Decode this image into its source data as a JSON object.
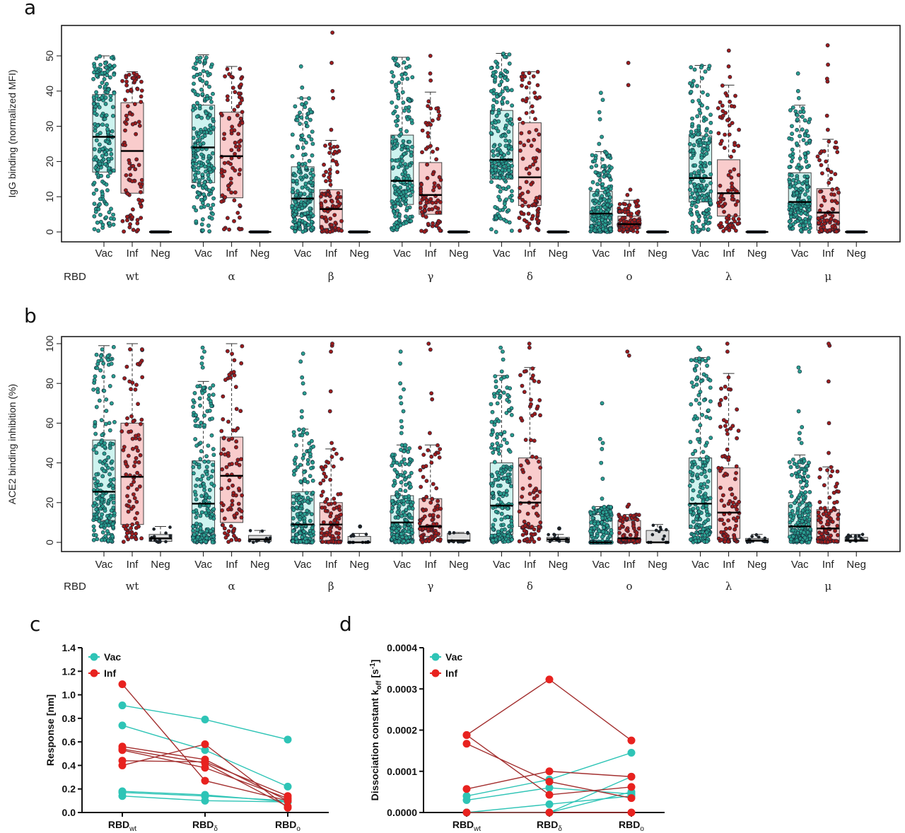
{
  "colors": {
    "vac_dot": "#2a9d8f",
    "vac_box": "#cdf3ef",
    "inf_dot": "#9b1c1c",
    "inf_box": "#f9cccc",
    "neg_dot": "#222222",
    "neg_box": "#dddddd",
    "line_vac": "#2ec4b6",
    "line_inf": "#e8221f",
    "line_inf_stroke": "#a33030"
  },
  "chart_data": [
    {
      "panel": "a",
      "type": "box",
      "ylabel": "IgG binding (normalized MFI)",
      "ylim": [
        0,
        58
      ],
      "yticks": [
        0,
        10,
        20,
        30,
        40,
        50
      ],
      "groups_label": [
        "Vac",
        "Inf",
        "Neg"
      ],
      "row_label": "RBD",
      "variants": [
        {
          "name": "wt",
          "Vac": {
            "box": [
              0,
              17,
              27,
              39,
              50
            ],
            "outliers": []
          },
          "Inf": {
            "box": [
              0,
              11,
              23,
              36.7,
              45.5
            ],
            "outliers": []
          },
          "Neg": {
            "box": [
              0,
              0,
              0,
              0,
              0
            ],
            "outliers": []
          }
        },
        {
          "name": "α",
          "Vac": {
            "box": [
              0,
              14,
              24,
              36,
              50.3
            ],
            "outliers": []
          },
          "Inf": {
            "box": [
              0,
              9.7,
              21.5,
              34,
              47
            ],
            "outliers": []
          },
          "Neg": {
            "box": [
              0,
              0,
              0,
              0,
              0
            ],
            "outliers": []
          }
        },
        {
          "name": "β",
          "Vac": {
            "box": [
              0,
              4.5,
              9.5,
              18.5,
              38
            ],
            "outliers": [
              41,
              47
            ]
          },
          "Inf": {
            "box": [
              0,
              1,
              6.5,
              12,
              26
            ],
            "outliers": [
              29,
              38,
              40,
              48,
              56.6
            ]
          },
          "Neg": {
            "box": [
              0,
              0,
              0,
              0,
              0
            ],
            "outliers": []
          }
        },
        {
          "name": "γ",
          "Vac": {
            "box": [
              0,
              7.8,
              14.5,
              27.5,
              49.6
            ],
            "outliers": []
          },
          "Inf": {
            "box": [
              0,
              5,
              10.5,
              19.7,
              39.7
            ],
            "outliers": [
              43,
              45,
              50
            ]
          },
          "Neg": {
            "box": [
              0,
              0,
              0,
              0,
              0
            ],
            "outliers": []
          }
        },
        {
          "name": "δ",
          "Vac": {
            "box": [
              0,
              15,
              20.5,
              34.5,
              50.7
            ],
            "outliers": []
          },
          "Inf": {
            "box": [
              0,
              7.5,
              15.5,
              31,
              45.5
            ],
            "outliers": []
          },
          "Neg": {
            "box": [
              0,
              0,
              0,
              0,
              0
            ],
            "outliers": []
          }
        },
        {
          "name": "ο",
          "Vac": {
            "box": [
              0,
              1,
              5.2,
              11.5,
              22.8
            ],
            "outliers": [
              25,
              27,
              32,
              34,
              37.5,
              39.5
            ]
          },
          "Inf": {
            "box": [
              0,
              1,
              2.2,
              4.5,
              9
            ],
            "outliers": [
              10.5,
              12,
              41.7,
              48
            ]
          },
          "Neg": {
            "box": [
              0,
              0,
              0,
              0,
              0
            ],
            "outliers": []
          }
        },
        {
          "name": "λ",
          "Vac": {
            "box": [
              0,
              8.5,
              15.3,
              27.3,
              47.3
            ],
            "outliers": []
          },
          "Inf": {
            "box": [
              0,
              4.5,
              11,
              20.5,
              41.7
            ],
            "outliers": [
              44,
              47,
              51.5
            ]
          },
          "Neg": {
            "box": [
              0,
              0,
              0,
              0,
              0
            ],
            "outliers": []
          }
        },
        {
          "name": "μ",
          "Vac": {
            "box": [
              0,
              6,
              8.5,
              16.8,
              36
            ],
            "outliers": [
              38,
              40,
              45
            ]
          },
          "Inf": {
            "box": [
              0,
              0.5,
              5.5,
              12.3,
              26.3
            ],
            "outliers": [
              29,
              33,
              42.7,
              43.5,
              47.5,
              53
            ]
          },
          "Neg": {
            "box": [
              0,
              0,
              0,
              0,
              0
            ],
            "outliers": []
          }
        }
      ]
    },
    {
      "panel": "b",
      "type": "box",
      "ylabel": "ACE2 binding inhibition (%)",
      "ylim": [
        0,
        104
      ],
      "yticks": [
        0,
        20,
        40,
        60,
        80,
        100
      ],
      "groups_label": [
        "Vac",
        "Inf",
        "Neg"
      ],
      "row_label": "RBD",
      "variants": [
        {
          "name": "wt",
          "Vac": {
            "box": [
              0,
              11,
              25.5,
              51.5,
              99
            ],
            "outliers": []
          },
          "Inf": {
            "box": [
              0,
              9,
              33,
              60,
              100
            ],
            "outliers": []
          },
          "Neg": {
            "box": [
              0,
              0.5,
              2,
              4,
              8
            ],
            "outliers": []
          }
        },
        {
          "name": "α",
          "Vac": {
            "box": [
              0,
              3,
              19.5,
              41,
              81
            ],
            "outliers": [
              88,
              90,
              93,
              96,
              98
            ]
          },
          "Inf": {
            "box": [
              0,
              10,
              33.5,
              53,
              100
            ],
            "outliers": []
          },
          "Neg": {
            "box": [
              0,
              0.5,
              1.5,
              3.5,
              6
            ],
            "outliers": []
          }
        },
        {
          "name": "β",
          "Vac": {
            "box": [
              0,
              1,
              9,
              25.5,
              57
            ],
            "outliers": [
              63,
              66,
              75,
              80,
              83,
              91,
              95
            ]
          },
          "Inf": {
            "box": [
              0,
              0.5,
              9,
              20,
              47
            ],
            "outliers": [
              50,
              66,
              76,
              96,
              99,
              100
            ]
          },
          "Neg": {
            "box": [
              0,
              0,
              0,
              3,
              4.5
            ],
            "outliers": [
              8
            ]
          }
        },
        {
          "name": "γ",
          "Vac": {
            "box": [
              0,
              2,
              10,
              23.5,
              49
            ],
            "outliers": [
              55,
              58,
              61,
              66,
              70,
              73,
              77,
              80,
              90,
              96
            ]
          },
          "Inf": {
            "box": [
              0,
              3,
              8,
              22,
              49
            ],
            "outliers": [
              55,
              72,
              75,
              97,
              100
            ]
          },
          "Neg": {
            "box": [
              0,
              0.5,
              1,
              4.5,
              5
            ],
            "outliers": []
          }
        },
        {
          "name": "δ",
          "Vac": {
            "box": [
              0,
              4,
              18.5,
              40,
              84
            ],
            "outliers": [
              86,
              92,
              96,
              98
            ]
          },
          "Inf": {
            "box": [
              0,
              8,
              20,
              42.5,
              88
            ],
            "outliers": [
              98,
              100
            ]
          },
          "Neg": {
            "box": [
              0,
              0.5,
              1.5,
              2.5,
              4
            ],
            "outliers": [
              7
            ]
          }
        },
        {
          "name": "ο",
          "Vac": {
            "box": [
              0,
              0,
              0,
              14,
              18
            ],
            "outliers": [
              22,
              32,
              40,
              47,
              50,
              52,
              70
            ]
          },
          "Inf": {
            "box": [
              0,
              1,
              2,
              11,
              14
            ],
            "outliers": [
              18,
              19,
              94,
              96
            ]
          },
          "Neg": {
            "box": [
              0,
              0,
              0,
              6,
              9
            ],
            "outliers": []
          }
        },
        {
          "name": "λ",
          "Vac": {
            "box": [
              0,
              7,
              19.5,
              42.5,
              93
            ],
            "outliers": [
              97,
              98
            ]
          },
          "Inf": {
            "box": [
              0,
              2,
              15,
              37.5,
              85
            ],
            "outliers": [
              96,
              100
            ]
          },
          "Neg": {
            "box": [
              0,
              0.5,
              1,
              2,
              4
            ],
            "outliers": []
          }
        },
        {
          "name": "μ",
          "Vac": {
            "box": [
              0,
              3,
              8,
              20,
              44
            ],
            "outliers": [
              50,
              52,
              55,
              58,
              66,
              86,
              88
            ]
          },
          "Inf": {
            "box": [
              0,
              1,
              7,
              16.5,
              38
            ],
            "outliers": [
              45,
              60,
              81,
              99,
              100
            ]
          },
          "Neg": {
            "box": [
              0,
              0.5,
              1,
              2.5,
              4
            ],
            "outliers": []
          }
        }
      ]
    },
    {
      "panel": "c",
      "type": "line",
      "ylabel": "Response [nm]",
      "ylim": [
        0,
        1.4
      ],
      "yticks": [
        "0.0",
        "0.2",
        "0.4",
        "0.6",
        "0.8",
        "1.0",
        "1.2",
        "1.4"
      ],
      "categories": [
        {
          "base": "RBD",
          "sub": "wt"
        },
        {
          "base": "RBD",
          "sub": "δ"
        },
        {
          "base": "RBD",
          "sub": "ο"
        }
      ],
      "legend": [
        "Vac",
        "Inf"
      ],
      "legend_position": "top-left",
      "series": [
        {
          "group": "Vac",
          "values": [
            0.91,
            0.79,
            0.62
          ]
        },
        {
          "group": "Vac",
          "values": [
            0.74,
            0.53,
            0.22
          ]
        },
        {
          "group": "Vac",
          "values": [
            0.18,
            0.15,
            0.09
          ]
        },
        {
          "group": "Vac",
          "values": [
            0.17,
            0.14,
            0.1
          ]
        },
        {
          "group": "Vac",
          "values": [
            0.14,
            0.1,
            0.09
          ]
        },
        {
          "group": "Inf",
          "values": [
            1.09,
            0.27,
            0.1
          ]
        },
        {
          "group": "Inf",
          "values": [
            0.56,
            0.45,
            0.1
          ]
        },
        {
          "group": "Inf",
          "values": [
            0.54,
            0.42,
            0.05
          ]
        },
        {
          "group": "Inf",
          "values": [
            0.53,
            0.38,
            0.12
          ]
        },
        {
          "group": "Inf",
          "values": [
            0.44,
            0.43,
            0.14
          ]
        },
        {
          "group": "Inf",
          "values": [
            0.4,
            0.58,
            0.04
          ]
        }
      ]
    },
    {
      "panel": "d",
      "type": "line",
      "ylabel_parts": [
        "Dissociation constant k",
        "off",
        " [s",
        "-1",
        "]"
      ],
      "ylim": [
        0,
        0.0004
      ],
      "yticks": [
        "0.0000",
        "0.0001",
        "0.0002",
        "0.0003",
        "0.0004"
      ],
      "categories": [
        {
          "base": "RBD",
          "sub": "wt"
        },
        {
          "base": "RBD",
          "sub": "δ"
        },
        {
          "base": "RBD",
          "sub": "ο"
        }
      ],
      "legend": [
        "Vac",
        "Inf"
      ],
      "legend_position": "top-left",
      "series": [
        {
          "group": "Vac",
          "values": [
            4e-05,
            8e-05,
            0.000145
          ]
        },
        {
          "group": "Vac",
          "values": [
            3e-05,
            6e-05,
            4.5e-05
          ]
        },
        {
          "group": "Vac",
          "values": [
            0.0,
            2e-05,
            4e-05
          ]
        },
        {
          "group": "Vac",
          "values": [
            0.0,
            0.0,
            8.7e-05
          ]
        },
        {
          "group": "Vac",
          "values": [
            0.0,
            0.0,
            5e-05
          ]
        },
        {
          "group": "Inf",
          "values": [
            0.000188,
            0.000323,
            0.000175
          ]
        },
        {
          "group": "Inf",
          "values": [
            0.000188,
            4.3e-05,
            6.2e-05
          ]
        },
        {
          "group": "Inf",
          "values": [
            0.000167,
            7.5e-05,
            3.5e-05
          ]
        },
        {
          "group": "Inf",
          "values": [
            5.7e-05,
            0.0001,
            8.7e-05
          ]
        },
        {
          "group": "Inf",
          "values": [
            0.0,
            0.0,
            0.0
          ]
        }
      ]
    }
  ],
  "panel_letters": [
    "a",
    "b",
    "c",
    "d"
  ]
}
